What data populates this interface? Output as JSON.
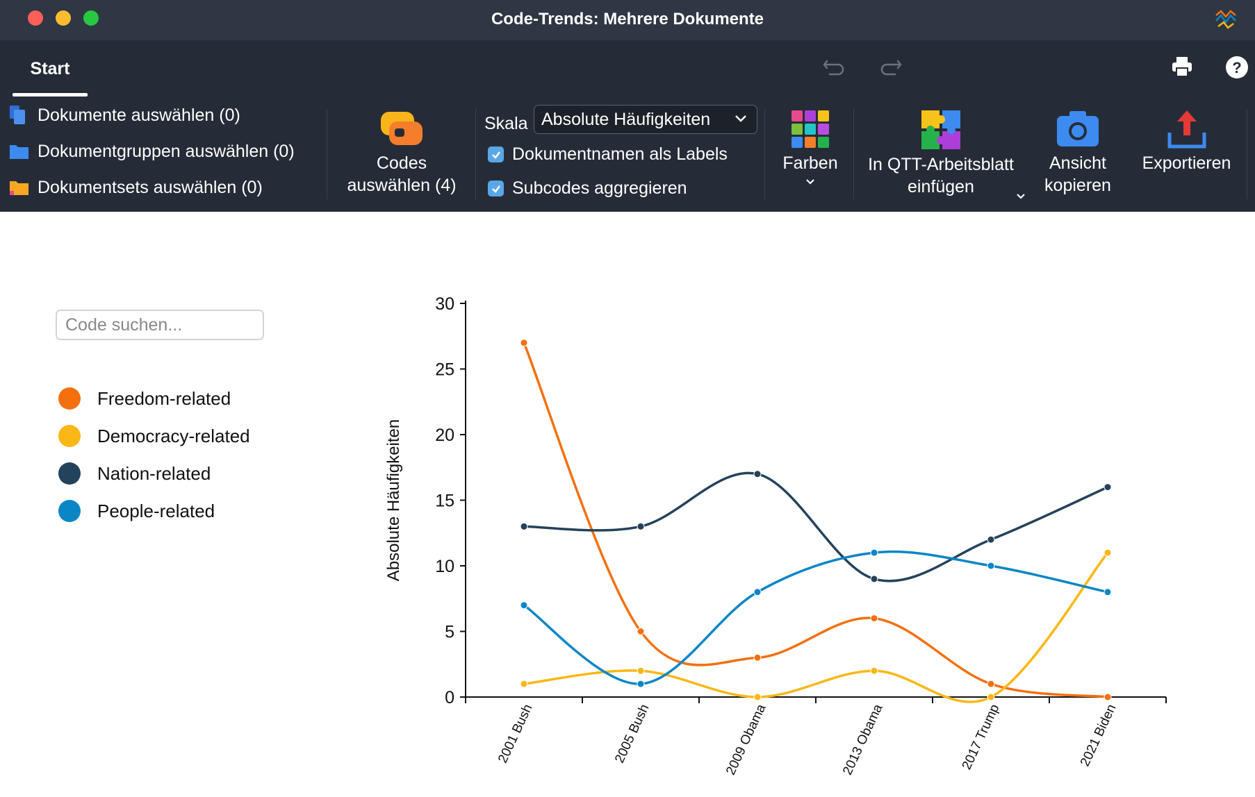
{
  "window": {
    "title": "Code-Trends: Mehrere Dokumente"
  },
  "tabs": {
    "start": "Start"
  },
  "ribbon": {
    "dokumente": "Dokumente auswählen (0)",
    "dokumentgruppen": "Dokumentgruppen auswählen (0)",
    "dokumentsets": "Dokumentsets auswählen (0)",
    "codes_line1": "Codes",
    "codes_line2": "auswählen (4)",
    "skala_label": "Skala",
    "skala_value": "Absolute Häufigkeiten",
    "labels_checkbox": "Dokumentnamen als Labels",
    "subcodes_checkbox": "Subcodes aggregieren",
    "farben": "Farben",
    "qtt_line1": "In QTT-Arbeitsblatt",
    "qtt_line2": "einfügen",
    "ansicht_line1": "Ansicht",
    "ansicht_line2": "kopieren",
    "exportieren": "Exportieren"
  },
  "search": {
    "placeholder": "Code suchen..."
  },
  "legend": [
    {
      "label": "Freedom-related",
      "color": "#f4700f"
    },
    {
      "label": "Democracy-related",
      "color": "#fbb715"
    },
    {
      "label": "Nation-related",
      "color": "#24425c"
    },
    {
      "label": "People-related",
      "color": "#0a86c7"
    }
  ],
  "chart_data": {
    "type": "line",
    "categories": [
      "2001 Bush",
      "2005 Bush",
      "2009 Obama",
      "2013 Obama",
      "2017 Trump",
      "2021 Biden"
    ],
    "series": [
      {
        "name": "Freedom-related",
        "color": "#f4700f",
        "values": [
          27,
          5,
          3,
          6,
          1,
          0
        ]
      },
      {
        "name": "Democracy-related",
        "color": "#fbb715",
        "values": [
          1,
          2,
          0,
          2,
          0,
          11
        ]
      },
      {
        "name": "Nation-related",
        "color": "#24425c",
        "values": [
          13,
          13,
          17,
          9,
          12,
          16
        ]
      },
      {
        "name": "People-related",
        "color": "#0a86c7",
        "values": [
          7,
          1,
          8,
          11,
          10,
          8
        ]
      }
    ],
    "ylabel": "Absolute Häufigkeiten",
    "xlabel": "",
    "ylim": [
      0,
      30
    ],
    "yticks": [
      0,
      5,
      10,
      15,
      20,
      25,
      30
    ],
    "grid": false,
    "smooth": true
  }
}
